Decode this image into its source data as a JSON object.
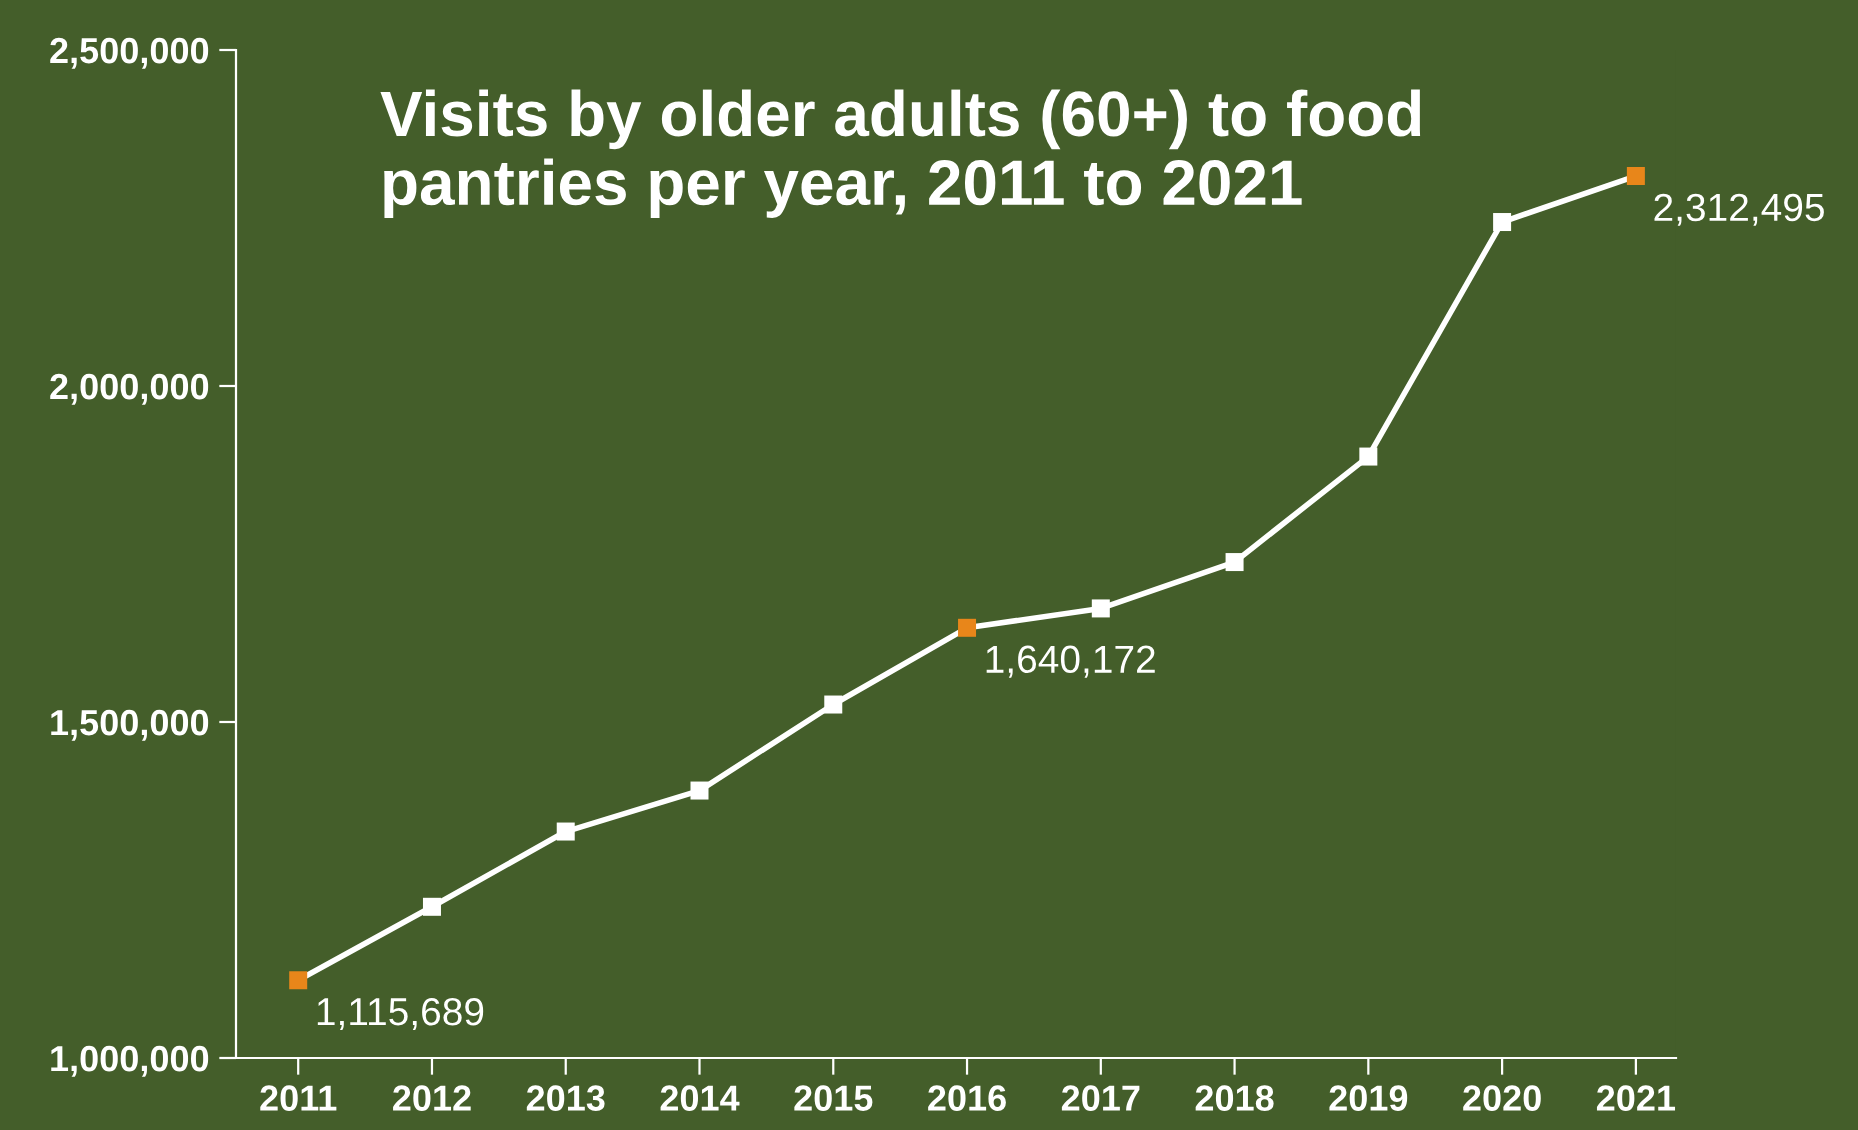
{
  "chart_data": {
    "type": "line",
    "title": "Visits by older adults (60+) to food\npantries per year, 2011 to 2021",
    "categories": [
      "2011",
      "2012",
      "2013",
      "2014",
      "2015",
      "2016",
      "2017",
      "2018",
      "2019",
      "2020",
      "2021"
    ],
    "series": [
      {
        "color": "#ffffff",
        "values": [
          1115689,
          1225000,
          1337000,
          1398000,
          1526000,
          1640172,
          1669000,
          1738000,
          1895000,
          2244000,
          2312495
        ],
        "colors": [
          "#e8861a",
          "#ffffff",
          "#ffffff",
          "#ffffff",
          "#ffffff",
          "#e8861a",
          "#ffffff",
          "#ffffff",
          "#ffffff",
          "#ffffff",
          "#e8861a"
        ],
        "value_labels": [
          "1,115,689",
          null,
          null,
          null,
          null,
          "1,640,172",
          null,
          null,
          null,
          null,
          "2,312,495"
        ]
      }
    ],
    "ylim": [
      1000000,
      2500000
    ],
    "yticks": [
      {
        "value": 1000000,
        "label": "1,000,000"
      },
      {
        "value": 1500000,
        "label": "1,500,000"
      },
      {
        "value": 2000000,
        "label": "2,000,000"
      },
      {
        "value": 2500000,
        "label": "2,500,000"
      }
    ],
    "marker": "square",
    "line_style": "solid",
    "grid": false,
    "legend": false
  }
}
